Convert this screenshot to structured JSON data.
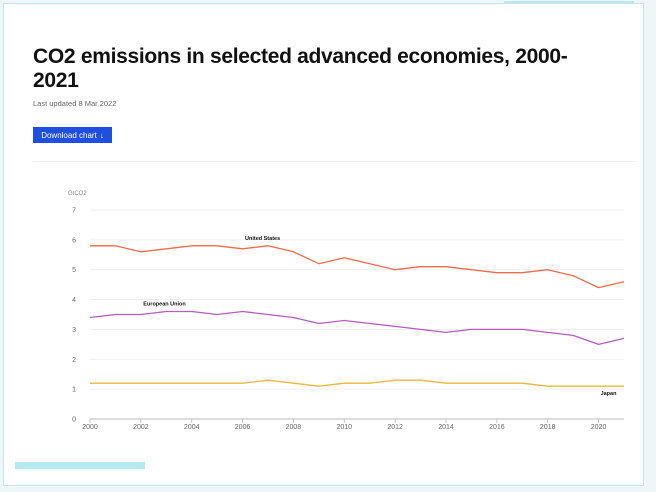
{
  "header": {
    "title": "CO2 emissions in selected advanced economies, 2000-2021",
    "updated": "Last updated 8 Mar 2022",
    "download_label": "Download chart",
    "download_icon": "arrow-down-icon"
  },
  "colors": {
    "accent": "#1f4fe0",
    "us": "#f26b4a",
    "eu": "#b55bc1",
    "japan": "#e9b83a"
  },
  "chart_data": {
    "type": "line",
    "title": "CO2 emissions in selected advanced economies, 2000-2021",
    "unit_label": "GtCO2",
    "xlabel": "",
    "ylabel": "GtCO2",
    "ylim": [
      0,
      7
    ],
    "xlim": [
      2000,
      2021
    ],
    "yticks": [
      "0",
      "1",
      "2",
      "3",
      "4",
      "5",
      "6",
      "7"
    ],
    "xticks": [
      "2000",
      "2002",
      "2004",
      "2006",
      "2008",
      "2010",
      "2012",
      "2014",
      "2016",
      "2018",
      "2020"
    ],
    "grid": true,
    "x": [
      2000,
      2001,
      2002,
      2003,
      2004,
      2005,
      2006,
      2007,
      2008,
      2009,
      2010,
      2011,
      2012,
      2013,
      2014,
      2015,
      2016,
      2017,
      2018,
      2019,
      2020,
      2021
    ],
    "series": [
      {
        "name": "United States",
        "color": "#f26b4a",
        "label_at": 2007,
        "values": [
          5.8,
          5.8,
          5.6,
          5.7,
          5.8,
          5.8,
          5.7,
          5.8,
          5.6,
          5.2,
          5.4,
          5.2,
          5.0,
          5.1,
          5.1,
          5.0,
          4.9,
          4.9,
          5.0,
          4.8,
          4.4,
          4.6
        ]
      },
      {
        "name": "European Union",
        "color": "#b55bc1",
        "label_at": 2003,
        "values": [
          3.4,
          3.5,
          3.5,
          3.6,
          3.6,
          3.5,
          3.6,
          3.5,
          3.4,
          3.2,
          3.3,
          3.2,
          3.1,
          3.0,
          2.9,
          3.0,
          3.0,
          3.0,
          2.9,
          2.8,
          2.5,
          2.7
        ]
      },
      {
        "name": "Japan",
        "color": "#e9b83a",
        "label_at": 2020,
        "values": [
          1.2,
          1.2,
          1.2,
          1.2,
          1.2,
          1.2,
          1.2,
          1.3,
          1.2,
          1.1,
          1.2,
          1.2,
          1.3,
          1.3,
          1.2,
          1.2,
          1.2,
          1.2,
          1.1,
          1.1,
          1.1,
          1.1
        ]
      }
    ]
  }
}
